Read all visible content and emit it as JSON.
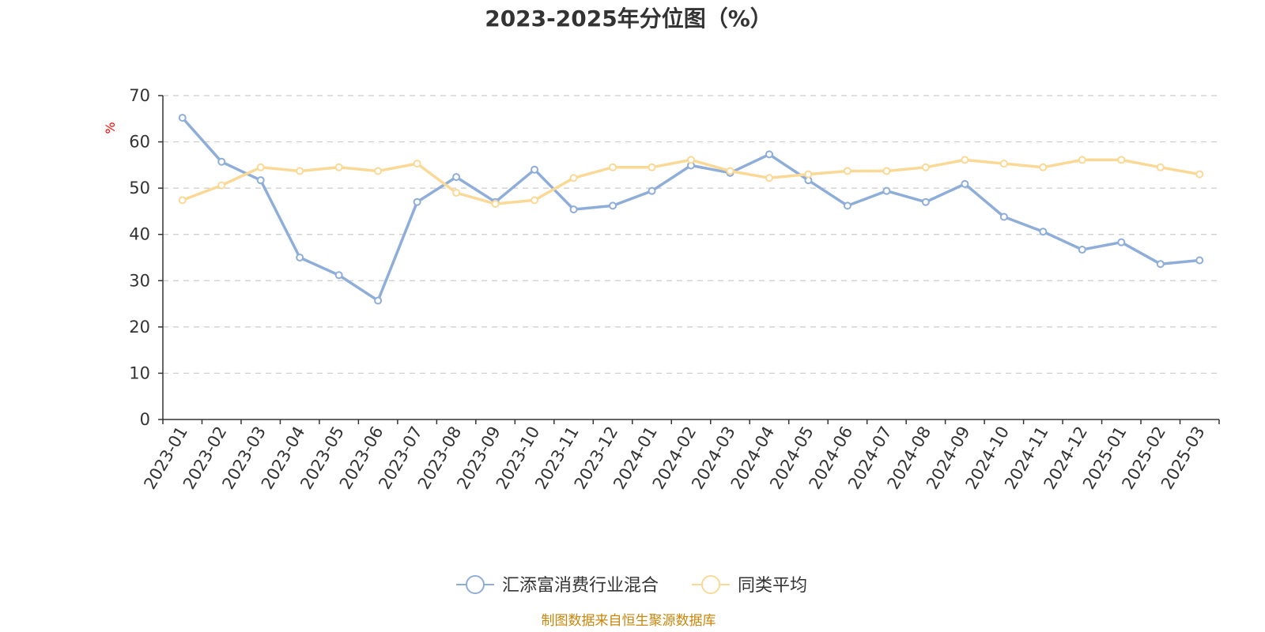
{
  "chart_data": {
    "type": "line",
    "title": "2023-2025年分位图（%）",
    "ylabel": "%",
    "ylim": [
      0,
      70
    ],
    "yticks": [
      0,
      10,
      20,
      30,
      40,
      50,
      60,
      70
    ],
    "grid": true,
    "legend_position": "bottom",
    "categories": [
      "2023-01",
      "2023-02",
      "2023-03",
      "2023-04",
      "2023-05",
      "2023-06",
      "2023-07",
      "2023-08",
      "2023-09",
      "2023-10",
      "2023-11",
      "2023-12",
      "2024-01",
      "2024-02",
      "2024-03",
      "2024-04",
      "2024-05",
      "2024-06",
      "2024-07",
      "2024-08",
      "2024-09",
      "2024-10",
      "2024-11",
      "2024-12",
      "2025-01",
      "2025-02",
      "2025-03"
    ],
    "series": [
      {
        "name": "汇添富消费行业混合",
        "color": "#8eaed9",
        "values": [
          65.2,
          55.7,
          51.7,
          35.0,
          31.2,
          25.7,
          47.0,
          52.4,
          47.0,
          54.0,
          45.4,
          46.2,
          49.4,
          54.9,
          53.3,
          57.3,
          51.7,
          46.2,
          49.4,
          47.0,
          50.9,
          43.8,
          40.6,
          36.7,
          38.3,
          33.6,
          34.4
        ]
      },
      {
        "name": "同类平均",
        "color": "#fad997",
        "values": [
          47.4,
          50.6,
          54.5,
          53.7,
          54.5,
          53.7,
          55.3,
          49.0,
          46.6,
          47.4,
          52.2,
          54.5,
          54.5,
          56.1,
          53.7,
          52.2,
          53.0,
          53.7,
          53.7,
          54.5,
          56.1,
          55.3,
          54.5,
          56.1,
          56.1,
          54.5,
          53.0
        ]
      }
    ],
    "source": "制图数据来自恒生聚源数据库"
  }
}
